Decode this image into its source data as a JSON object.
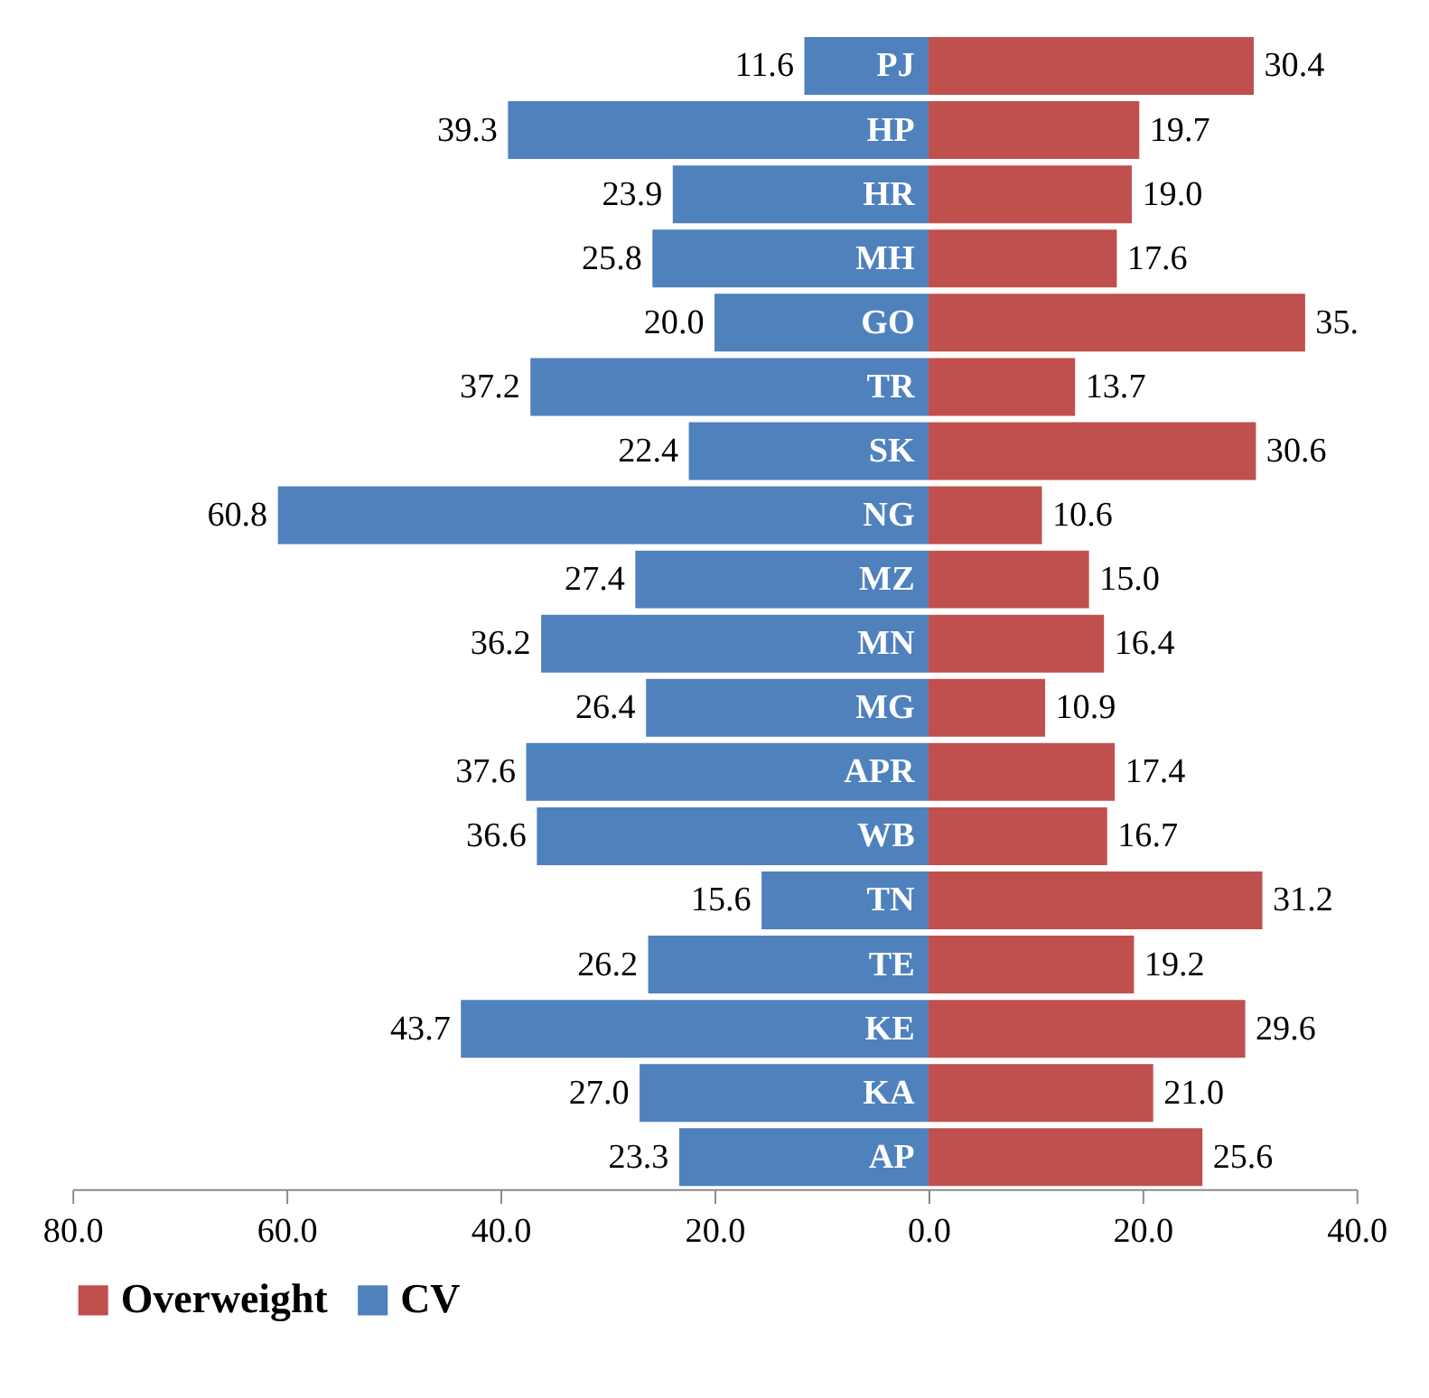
{
  "chart_data": [
    {
      "type": "bar",
      "orientation": "horizontal",
      "categories": [
        "PJ",
        "HP",
        "HR",
        "MH",
        "GO",
        "TR",
        "SK",
        "NG",
        "MZ",
        "MN",
        "MG",
        "APR",
        "WB",
        "TN",
        "TE",
        "KE",
        "KA",
        "AP"
      ],
      "series": [
        {
          "name": "CV",
          "color": "#4f81bd",
          "values": [
            11.6,
            39.3,
            23.9,
            25.8,
            20.0,
            37.2,
            22.4,
            60.8,
            27.4,
            36.2,
            26.4,
            37.6,
            36.6,
            15.6,
            26.2,
            43.7,
            27.0,
            23.3
          ],
          "value_labels": [
            "11.6",
            "39.3",
            "23.9",
            "25.8",
            "20.0",
            "37.2",
            "22.4",
            "60.8",
            "27.4",
            "36.2",
            "26.4",
            "37.6",
            "36.6",
            "15.6",
            "26.2",
            "43.7",
            "27.0",
            "23.3"
          ]
        }
      ],
      "xlim": [
        80,
        0
      ],
      "xticks": [
        {
          "value": 80,
          "label": "80.0"
        },
        {
          "value": 60,
          "label": "60.0"
        },
        {
          "value": 40,
          "label": "40.0"
        },
        {
          "value": 20,
          "label": "20.0"
        },
        {
          "value": 0,
          "label": "0.0"
        }
      ],
      "grid": false,
      "legend": "bottom"
    },
    {
      "type": "bar",
      "orientation": "horizontal",
      "categories": [
        null,
        null,
        null,
        null,
        null,
        null,
        null,
        null,
        null,
        null,
        null,
        null,
        null,
        null,
        null,
        null,
        null,
        null
      ],
      "series": [
        {
          "name": "Overweight",
          "color": "#c0504d",
          "values": [
            30.4,
            19.7,
            19.0,
            17.6,
            35.2,
            13.7,
            30.6,
            10.6,
            15.0,
            16.4,
            10.9,
            17.4,
            16.7,
            31.2,
            19.2,
            29.6,
            21.0,
            25.6
          ],
          "value_labels": [
            "30.4",
            "19.7",
            "19.0",
            "17.6",
            "35.",
            "13.7",
            "30.6",
            "10.6",
            "15.0",
            "16.4",
            "10.9",
            "17.4",
            "16.7",
            "31.2",
            "19.2",
            "29.6",
            "21.0",
            "25.6"
          ]
        }
      ],
      "xlim": [
        0,
        40
      ],
      "xticks": [
        {
          "value": 0,
          "label": null
        },
        {
          "value": 20,
          "label": "20.0"
        },
        {
          "value": 40,
          "label": "40.0"
        }
      ],
      "grid": false,
      "legend": "bottom"
    }
  ]
}
